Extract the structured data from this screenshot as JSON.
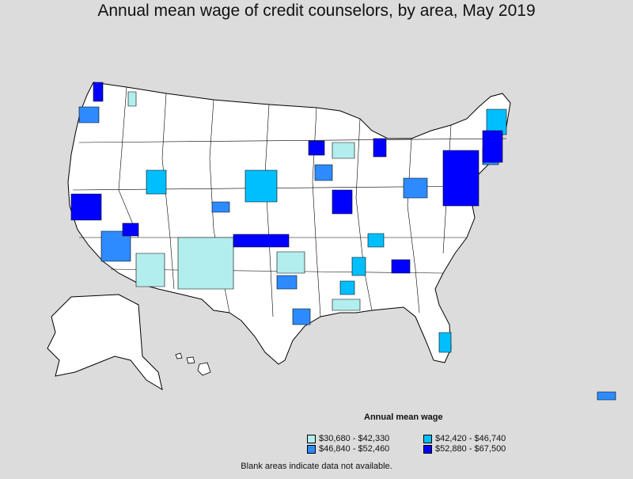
{
  "title": "Annual mean wage of credit counselors, by area, May 2019",
  "legend": {
    "title": "Annual mean wage",
    "items": [
      {
        "label": "$30,680 - $42,330",
        "color": "#b3eeee"
      },
      {
        "label": "$42,420 - $46,740",
        "color": "#00bfff"
      },
      {
        "label": "$46,840 - $52,460",
        "color": "#2e8bff"
      },
      {
        "label": "$52,880 - $67,500",
        "color": "#0000ff"
      }
    ]
  },
  "note": "Blank areas indicate data not available.",
  "colors": {
    "background": "#dcdcdc",
    "land": "#ffffff",
    "border": "#000000"
  }
}
